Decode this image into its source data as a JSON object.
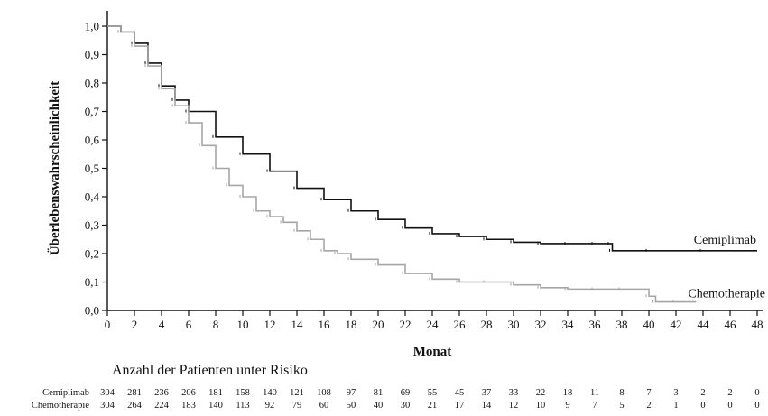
{
  "chart_data": {
    "type": "line",
    "title": "",
    "xlabel": "Monat",
    "ylabel": "Überlebenswahrscheinlichkeit",
    "xlim": [
      0,
      48
    ],
    "ylim": [
      0,
      1.0
    ],
    "x_ticks": [
      "0",
      "2",
      "4",
      "6",
      "8",
      "10",
      "12",
      "14",
      "16",
      "18",
      "20",
      "22",
      "24",
      "26",
      "28",
      "30",
      "32",
      "34",
      "36",
      "38",
      "40",
      "42",
      "44",
      "46",
      "48"
    ],
    "y_ticks": [
      "0,0",
      "0,1",
      "0,2",
      "0,3",
      "0,4",
      "0,5",
      "0,6",
      "0,7",
      "0,8",
      "0,9",
      "1,0"
    ],
    "grid": false,
    "series": [
      {
        "name": "Cemiplimab",
        "color": "#111111",
        "x": [
          0,
          1,
          2,
          3,
          4,
          5,
          6,
          8,
          10,
          12,
          14,
          16,
          18,
          20,
          22,
          24,
          26,
          28,
          30,
          32,
          34,
          36,
          37.2,
          37.3,
          40,
          44,
          48
        ],
        "y": [
          1.0,
          0.98,
          0.94,
          0.87,
          0.79,
          0.74,
          0.7,
          0.61,
          0.55,
          0.49,
          0.43,
          0.39,
          0.35,
          0.32,
          0.29,
          0.27,
          0.26,
          0.25,
          0.24,
          0.235,
          0.235,
          0.235,
          0.235,
          0.21,
          0.21,
          0.21,
          0.21
        ]
      },
      {
        "name": "Chemotherapie",
        "color": "#a6a6a6",
        "x": [
          0,
          1,
          2,
          3,
          4,
          5,
          6,
          7,
          8,
          9,
          10,
          11,
          12,
          13,
          14,
          15,
          16,
          17,
          18,
          20,
          22,
          24,
          26,
          28,
          30,
          32,
          34,
          36,
          38,
          40,
          40.5,
          42,
          43.5
        ],
        "y": [
          1.0,
          0.98,
          0.93,
          0.86,
          0.78,
          0.72,
          0.66,
          0.58,
          0.5,
          0.44,
          0.4,
          0.35,
          0.33,
          0.31,
          0.28,
          0.25,
          0.21,
          0.2,
          0.18,
          0.16,
          0.13,
          0.11,
          0.1,
          0.1,
          0.09,
          0.08,
          0.075,
          0.075,
          0.075,
          0.05,
          0.03,
          0.03,
          0.03
        ]
      }
    ],
    "risk_table": {
      "title": "Anzahl der Patienten unter Risiko",
      "rows": [
        {
          "name": "Cemiplimab",
          "values": [
            "304",
            "281",
            "236",
            "206",
            "181",
            "158",
            "140",
            "121",
            "108",
            "97",
            "81",
            "69",
            "55",
            "45",
            "37",
            "33",
            "22",
            "18",
            "11",
            "8",
            "7",
            "3",
            "2",
            "2",
            "0"
          ]
        },
        {
          "name": "Chemotherapie",
          "values": [
            "304",
            "264",
            "224",
            "183",
            "140",
            "113",
            "92",
            "79",
            "60",
            "50",
            "40",
            "30",
            "21",
            "17",
            "14",
            "12",
            "10",
            "9",
            "7",
            "5",
            "2",
            "1",
            "0",
            "0",
            "0"
          ]
        }
      ]
    }
  }
}
